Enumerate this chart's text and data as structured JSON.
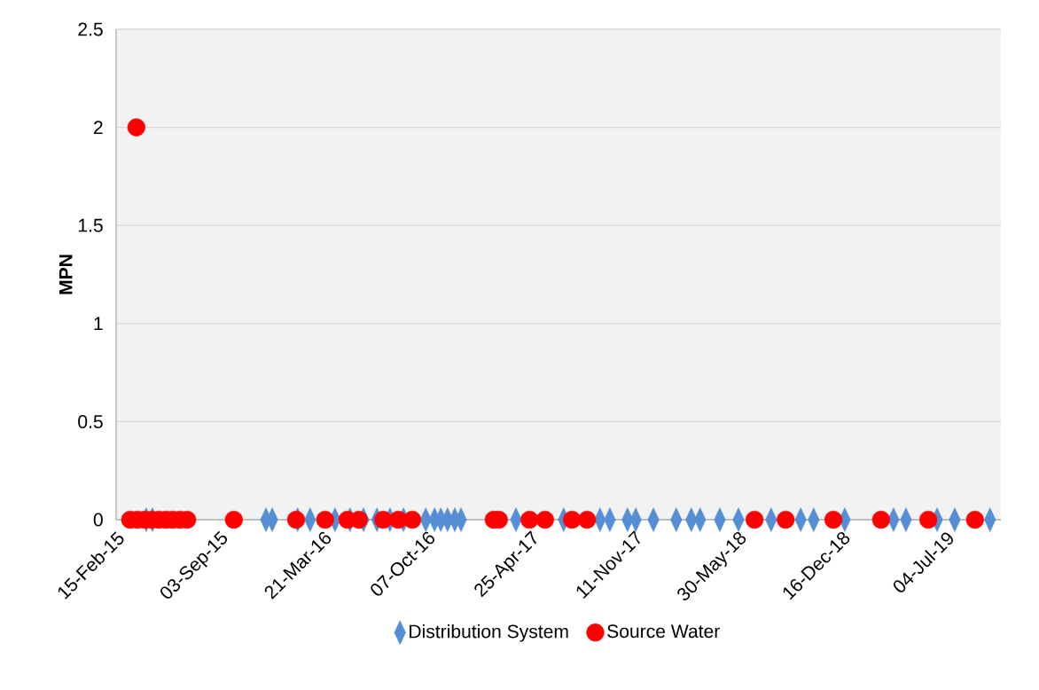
{
  "chart_data": {
    "type": "scatter",
    "ylabel": "MPN",
    "legend": "bottom",
    "grid": "y",
    "xlim": [
      "2015-02-15",
      "2019-10-18"
    ],
    "xticks": [
      {
        "value": "2015-02-15",
        "label": "15-Feb-15"
      },
      {
        "value": "2015-09-03",
        "label": "03-Sep-15"
      },
      {
        "value": "2016-03-21",
        "label": "21-Mar-16"
      },
      {
        "value": "2016-10-07",
        "label": "07-Oct-16"
      },
      {
        "value": "2017-04-25",
        "label": "25-Apr-17"
      },
      {
        "value": "2017-11-11",
        "label": "11-Nov-17"
      },
      {
        "value": "2018-05-30",
        "label": "30-May-18"
      },
      {
        "value": "2018-12-16",
        "label": "16-Dec-18"
      },
      {
        "value": "2019-07-04",
        "label": "04-Jul-19"
      }
    ],
    "ylim": [
      0,
      2.5
    ],
    "yticks": [
      0,
      0.5,
      1,
      1.5,
      2,
      2.5
    ],
    "series": [
      {
        "name": "Distribution System",
        "color": "#558ed5",
        "marker": "diamond",
        "x": [
          "2015-04-14",
          "2015-04-26",
          "2015-12-01",
          "2015-12-13",
          "2016-01-31",
          "2016-02-24",
          "2016-04-12",
          "2016-05-11",
          "2016-06-06",
          "2016-07-02",
          "2016-07-27",
          "2016-08-22",
          "2016-10-04",
          "2016-10-21",
          "2016-11-02",
          "2016-11-15",
          "2016-11-29",
          "2016-12-11",
          "2017-03-27",
          "2017-06-27",
          "2017-09-05",
          "2017-09-24",
          "2017-10-28",
          "2017-11-13",
          "2017-12-17",
          "2018-01-30",
          "2018-02-28",
          "2018-03-17",
          "2018-04-24",
          "2018-05-30",
          "2018-08-01",
          "2018-09-27",
          "2018-10-22",
          "2018-12-21",
          "2019-03-25",
          "2019-04-18",
          "2019-06-17",
          "2019-07-21",
          "2019-09-27"
        ],
        "values": [
          0,
          0,
          0,
          0,
          0,
          0,
          0,
          0,
          0,
          0,
          0,
          0,
          0,
          0,
          0,
          0,
          0,
          0,
          0,
          0,
          0,
          0,
          0,
          0,
          0,
          0,
          0,
          0,
          0,
          0,
          0,
          0,
          0,
          0,
          0,
          0,
          0,
          0,
          0
        ]
      },
      {
        "name": "Source Water",
        "color": "#ff0000",
        "marker": "circle",
        "x": [
          "2015-03-26",
          "2015-03-14",
          "2015-03-28",
          "2015-04-11",
          "2015-04-24",
          "2015-05-08",
          "2015-05-22",
          "2015-06-04",
          "2015-06-18",
          "2015-07-02",
          "2015-09-30",
          "2016-01-28",
          "2016-03-24",
          "2016-05-06",
          "2016-05-28",
          "2016-07-14",
          "2016-08-12",
          "2016-09-08",
          "2017-02-12",
          "2017-02-22",
          "2017-04-22",
          "2017-05-22",
          "2017-07-13",
          "2017-08-11",
          "2018-06-30",
          "2018-08-29",
          "2018-11-29",
          "2019-03-01",
          "2019-05-31",
          "2019-08-29"
        ],
        "values": [
          2,
          0,
          0,
          0,
          0,
          0,
          0,
          0,
          0,
          0,
          0,
          0,
          0,
          0,
          0,
          0,
          0,
          0,
          0,
          0,
          0,
          0,
          0,
          0,
          0,
          0,
          0,
          0,
          0,
          0
        ]
      }
    ]
  }
}
